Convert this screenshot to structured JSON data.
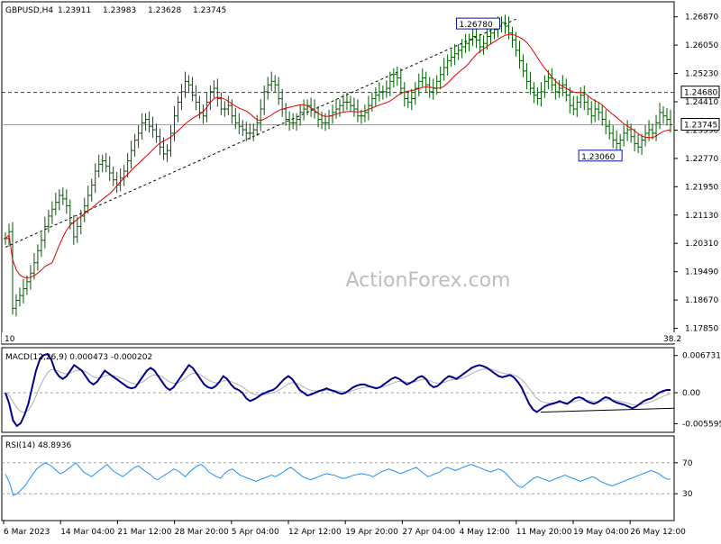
{
  "chart_data": {
    "type": "candlestick",
    "symbol_label": "GBPUSD,H4",
    "ohlc": {
      "open": "1.23911",
      "high": "1.23983",
      "low": "1.23628",
      "close": "1.23745"
    },
    "watermark": "ActionForex.com",
    "main_panel": {
      "ylim": [
        1.175,
        1.272
      ],
      "y_ticks": [
        "1.26870",
        "1.26050",
        "1.25230",
        "1.24410",
        "1.23590",
        "1.22770",
        "1.21950",
        "1.21130",
        "1.20310",
        "1.19490",
        "1.18670",
        "1.17850"
      ],
      "horizontal_level": {
        "value": 1.2468,
        "label": "1.24680",
        "style": "dashed"
      },
      "current_price": {
        "value": 1.23745,
        "label": "1.23745"
      },
      "annotations": [
        {
          "label": "1.26780",
          "value": 1.2678,
          "bar_index": 138
        },
        {
          "label": "1.23060",
          "value": 1.2306,
          "bar_index": 172
        },
        {
          "label": "10",
          "value": 1.1785,
          "bar_index": 2
        },
        {
          "label": "38.2",
          "value": 1.1785,
          "bar_index": 185
        }
      ],
      "trend_channel": [
        {
          "bar_index": 0,
          "value": 1.202
        },
        {
          "bar_index": 142,
          "value": 1.268
        }
      ],
      "moving_average_color": "#e00000",
      "price_color": "#005a00",
      "close_series": [
        1.2045,
        1.2065,
        1.1843,
        1.1866,
        1.188,
        1.19,
        1.192,
        1.1945,
        1.1975,
        1.201,
        1.204,
        1.208,
        1.211,
        1.213,
        1.215,
        1.217,
        1.216,
        1.214,
        1.209,
        1.205,
        1.208,
        1.211,
        1.214,
        1.217,
        1.22,
        1.224,
        1.226,
        1.227,
        1.2255,
        1.2235,
        1.2215,
        1.22,
        1.222,
        1.224,
        1.227,
        1.23,
        1.233,
        1.235,
        1.238,
        1.239,
        1.237,
        1.236,
        1.234,
        1.231,
        1.229,
        1.23,
        1.235,
        1.24,
        1.244,
        1.247,
        1.25,
        1.249,
        1.246,
        1.244,
        1.241,
        1.24,
        1.244,
        1.247,
        1.248,
        1.245,
        1.242,
        1.242,
        1.243,
        1.24,
        1.238,
        1.237,
        1.236,
        1.235,
        1.235,
        1.236,
        1.238,
        1.242,
        1.247,
        1.249,
        1.25,
        1.249,
        1.245,
        1.242,
        1.239,
        1.238,
        1.238,
        1.239,
        1.241,
        1.242,
        1.243,
        1.242,
        1.241,
        1.239,
        1.238,
        1.238,
        1.24,
        1.241,
        1.242,
        1.243,
        1.244,
        1.244,
        1.243,
        1.242,
        1.24,
        1.24,
        1.241,
        1.243,
        1.245,
        1.246,
        1.247,
        1.247,
        1.248,
        1.25,
        1.252,
        1.251,
        1.248,
        1.245,
        1.244,
        1.245,
        1.248,
        1.25,
        1.251,
        1.249,
        1.247,
        1.248,
        1.25,
        1.252,
        1.254,
        1.256,
        1.257,
        1.258,
        1.259,
        1.26,
        1.261,
        1.262,
        1.263,
        1.262,
        1.26,
        1.261,
        1.263,
        1.264,
        1.265,
        1.266,
        1.267,
        1.266,
        1.264,
        1.262,
        1.259,
        1.256,
        1.253,
        1.25,
        1.248,
        1.246,
        1.245,
        1.247,
        1.25,
        1.251,
        1.249,
        1.247,
        1.248,
        1.249,
        1.246,
        1.243,
        1.242,
        1.244,
        1.246,
        1.244,
        1.242,
        1.24,
        1.242,
        1.241,
        1.239,
        1.237,
        1.235,
        1.233,
        1.232,
        1.233,
        1.235,
        1.236,
        1.234,
        1.232,
        1.231,
        1.233,
        1.235,
        1.236,
        1.235,
        1.238,
        1.241,
        1.24,
        1.239,
        1.2375
      ]
    },
    "macd_panel": {
      "label": "MACD(12,26,9) 0.000473 -0.000202",
      "y_ticks": [
        "0.006731",
        "0.00",
        "-0.005595"
      ],
      "ylim": [
        -0.0065,
        0.0075
      ],
      "macd_color": "#00008b",
      "signal_color": "#b0b0b0",
      "macd_series": [
        0.0,
        -0.002,
        -0.005,
        -0.006,
        -0.0055,
        -0.004,
        -0.002,
        0.001,
        0.004,
        0.006,
        0.0068,
        0.007,
        0.006,
        0.004,
        0.003,
        0.0025,
        0.003,
        0.004,
        0.005,
        0.0045,
        0.004,
        0.003,
        0.002,
        0.0015,
        0.002,
        0.003,
        0.004,
        0.0035,
        0.003,
        0.0025,
        0.002,
        0.0015,
        0.001,
        0.0008,
        0.001,
        0.002,
        0.003,
        0.004,
        0.0045,
        0.004,
        0.003,
        0.002,
        0.001,
        0.0005,
        0.001,
        0.002,
        0.003,
        0.004,
        0.005,
        0.0045,
        0.0035,
        0.0025,
        0.0015,
        0.001,
        0.0008,
        0.0012,
        0.002,
        0.003,
        0.0025,
        0.0015,
        0.0008,
        0.0005,
        0.0,
        -0.001,
        -0.0015,
        -0.0012,
        -0.0008,
        -0.0003,
        0.0,
        0.0003,
        0.0005,
        0.001,
        0.0018,
        0.0025,
        0.003,
        0.0025,
        0.0015,
        0.0005,
        0.0,
        -0.0005,
        -0.0003,
        0.0,
        0.0003,
        0.0005,
        0.0008,
        0.0005,
        0.0003,
        0.0,
        -0.0002,
        0.0,
        0.0005,
        0.001,
        0.0013,
        0.0015,
        0.0015,
        0.0012,
        0.001,
        0.0008,
        0.001,
        0.0015,
        0.002,
        0.0025,
        0.0028,
        0.0025,
        0.002,
        0.0015,
        0.0018,
        0.0022,
        0.0028,
        0.003,
        0.0025,
        0.0015,
        0.001,
        0.0012,
        0.0018,
        0.0025,
        0.003,
        0.0028,
        0.0025,
        0.003,
        0.0035,
        0.004,
        0.0045,
        0.0048,
        0.005,
        0.0048,
        0.0045,
        0.004,
        0.0035,
        0.003,
        0.0028,
        0.003,
        0.0032,
        0.0028,
        0.002,
        0.001,
        -0.0005,
        -0.002,
        -0.003,
        -0.0035,
        -0.003,
        -0.0025,
        -0.0022,
        -0.002,
        -0.0018,
        -0.0015,
        -0.0018,
        -0.002,
        -0.0015,
        -0.001,
        -0.0008,
        -0.001,
        -0.0015,
        -0.0018,
        -0.002,
        -0.0017,
        -0.0012,
        -0.0008,
        -0.001,
        -0.0015,
        -0.0018,
        -0.002,
        -0.0022,
        -0.0025,
        -0.0028,
        -0.0025,
        -0.002,
        -0.0015,
        -0.0012,
        -0.001,
        -0.0005,
        0.0,
        0.0003,
        0.0005,
        0.0005
      ]
    },
    "rsi_panel": {
      "label": "RSI(14) 48.8936",
      "y_ticks": [
        "70",
        "30"
      ],
      "ylim": [
        0,
        100
      ],
      "levels": [
        70,
        30
      ],
      "rsi_color": "#1e90ff",
      "rsi_series": [
        55,
        45,
        28,
        30,
        35,
        40,
        48,
        55,
        62,
        66,
        70,
        68,
        65,
        60,
        56,
        58,
        62,
        66,
        70,
        64,
        58,
        55,
        52,
        56,
        60,
        64,
        68,
        62,
        58,
        55,
        52,
        56,
        60,
        64,
        66,
        62,
        58,
        55,
        50,
        48,
        52,
        55,
        58,
        62,
        60,
        56,
        52,
        58,
        62,
        66,
        68,
        64,
        58,
        55,
        52,
        50,
        56,
        60,
        62,
        58,
        54,
        52,
        50,
        48,
        46,
        48,
        50,
        52,
        54,
        52,
        55,
        58,
        62,
        64,
        60,
        56,
        52,
        50,
        48,
        50,
        52,
        54,
        56,
        55,
        54,
        52,
        50,
        50,
        52,
        54,
        55,
        56,
        55,
        54,
        52,
        55,
        58,
        60,
        62,
        60,
        58,
        56,
        58,
        60,
        62,
        64,
        60,
        56,
        52,
        54,
        56,
        58,
        62,
        64,
        62,
        60,
        62,
        64,
        66,
        68,
        66,
        64,
        62,
        60,
        58,
        60,
        62,
        60,
        56,
        50,
        45,
        40,
        38,
        42,
        46,
        50,
        52,
        50,
        48,
        46,
        48,
        50,
        52,
        54,
        52,
        50,
        48,
        46,
        48,
        50,
        52,
        50,
        46,
        44,
        42,
        40,
        42,
        44,
        46,
        48,
        50,
        52,
        54,
        56,
        58,
        60,
        58,
        56,
        52,
        49,
        48.8936
      ]
    },
    "x_labels": [
      "6 Mar 2023",
      "14 Mar 04:00",
      "21 Mar 12:00",
      "28 Mar 20:00",
      "5 Apr 04:00",
      "12 Apr 12:00",
      "19 Apr 20:00",
      "27 Apr 04:00",
      "4 May 12:00",
      "11 May 20:00",
      "19 May 04:00",
      "26 May 12:00"
    ]
  }
}
